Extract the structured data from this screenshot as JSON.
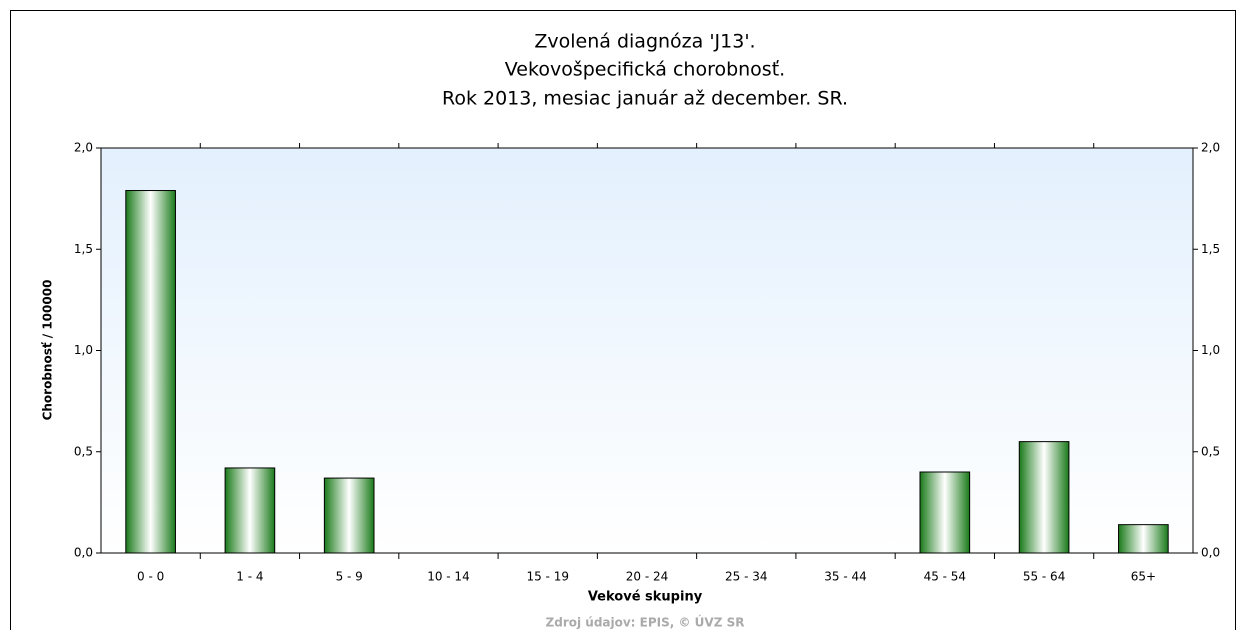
{
  "chart_data": {
    "type": "bar",
    "title_lines": [
      "Zvolená diagnóza 'J13'.",
      "Vekovošpecifická chorobnosť.",
      "Rok 2013, mesiac január až december. SR."
    ],
    "x_label": "Vekové skupiny",
    "y_label": "Chorobnosť / 100000",
    "source": "Zdroj údajov: EPIS, © ÚVZ SR",
    "categories": [
      "0 - 0",
      "1 - 4",
      "5 - 9",
      "10 - 14",
      "15 - 19",
      "20 - 24",
      "25 - 34",
      "35 - 44",
      "45 - 54",
      "55 - 64",
      "65+"
    ],
    "values": [
      1.79,
      0.42,
      0.37,
      0,
      0,
      0,
      0,
      0,
      0.4,
      0.55,
      0.14
    ],
    "color": "#1a7a1a",
    "ylim": [
      0,
      2
    ],
    "yticks": [
      {
        "value": 0,
        "label": "0,0"
      },
      {
        "value": 0.5,
        "label": "0,5"
      },
      {
        "value": 1,
        "label": "1,0"
      },
      {
        "value": 1.5,
        "label": "1,5"
      },
      {
        "value": 2,
        "label": "2,0"
      }
    ],
    "y2lim": [
      0,
      2
    ],
    "y2ticks": [
      {
        "value": 0,
        "label": "0,0"
      },
      {
        "value": 0.5,
        "label": "0,5"
      },
      {
        "value": 1,
        "label": "1,0"
      },
      {
        "value": 1.5,
        "label": "1,5"
      },
      {
        "value": 2,
        "label": "2,0"
      }
    ],
    "grid": false
  }
}
